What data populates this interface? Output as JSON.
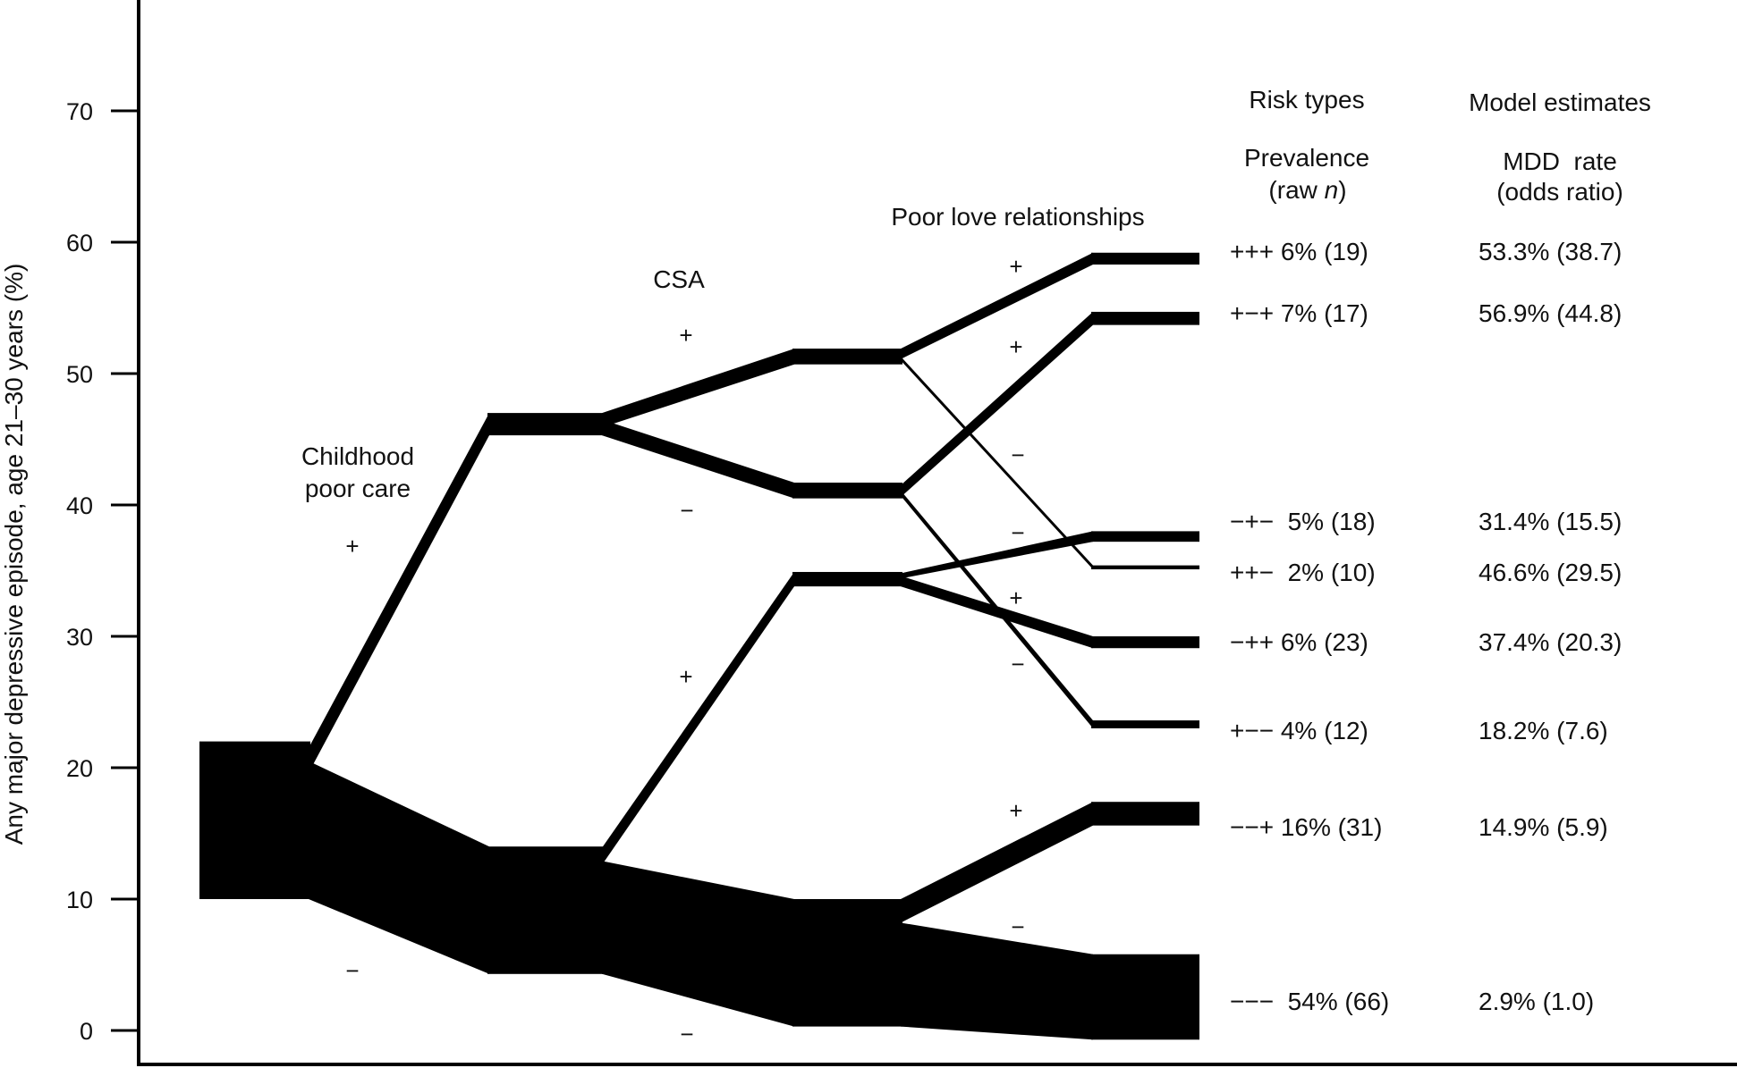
{
  "chart_data": {
    "type": "flow",
    "ylabel": "Any major depressive episode, age 21–30 years (%)",
    "ylim": [
      0,
      70
    ],
    "yticks": [
      "0",
      "10",
      "20",
      "30",
      "40",
      "50",
      "60",
      "70"
    ],
    "stages": {
      "childhood": {
        "label_line1": "Childhood",
        "label_line2": "poor care",
        "plus": "+",
        "minus": "−"
      },
      "csa": {
        "label": "CSA",
        "plus_top": "+",
        "minus_top": "−",
        "plus_bottom": "+",
        "minus_bottom": "−"
      },
      "love": {
        "label": "Poor love relationships",
        "signs": [
          "+",
          "+",
          "−",
          "−",
          "+",
          "−",
          "+",
          "−"
        ]
      }
    },
    "nodes": [
      {
        "id": "all",
        "stage": 0,
        "lo": 10,
        "hi": 22
      },
      {
        "id": "+",
        "stage": 1,
        "lo": 45.3,
        "hi": 47.0
      },
      {
        "id": "-",
        "stage": 1,
        "lo": 4.3,
        "hi": 14.0
      },
      {
        "id": "++",
        "stage": 2,
        "lo": 50.7,
        "hi": 51.9
      },
      {
        "id": "+-",
        "stage": 2,
        "lo": 40.5,
        "hi": 41.7
      },
      {
        "id": "-+",
        "stage": 2,
        "lo": 33.8,
        "hi": 34.9
      },
      {
        "id": "--",
        "stage": 2,
        "lo": 0.3,
        "hi": 10.0
      },
      {
        "id": "+++",
        "stage": 3,
        "lo": 58.3,
        "hi": 59.2
      },
      {
        "id": "+-+",
        "stage": 3,
        "lo": 53.7,
        "hi": 54.7
      },
      {
        "id": "-+-",
        "stage": 3,
        "lo": 37.2,
        "hi": 38.0
      },
      {
        "id": "++-",
        "stage": 3,
        "lo": 35.1,
        "hi": 35.4
      },
      {
        "id": "-++",
        "stage": 3,
        "lo": 29.1,
        "hi": 30.0
      },
      {
        "id": "+--",
        "stage": 3,
        "lo": 23.0,
        "hi": 23.6
      },
      {
        "id": "--+",
        "stage": 3,
        "lo": 15.6,
        "hi": 17.4
      },
      {
        "id": "---",
        "stage": 3,
        "lo": -0.7,
        "hi": 5.8
      }
    ],
    "links": [
      {
        "from_stage": 0,
        "from": [
          19.6,
          21.5
        ],
        "to": [
          45.3,
          47.0
        ]
      },
      {
        "from_stage": 0,
        "from": [
          10.0,
          20.5
        ],
        "to": [
          4.3,
          14.0
        ]
      },
      {
        "from_stage": 1,
        "from": [
          45.9,
          47.0
        ],
        "to": [
          50.7,
          51.9
        ]
      },
      {
        "from_stage": 1,
        "from": [
          45.3,
          46.5
        ],
        "to": [
          40.5,
          41.7
        ]
      },
      {
        "from_stage": 1,
        "from": [
          12.6,
          13.9
        ],
        "to": [
          33.8,
          34.9
        ]
      },
      {
        "from_stage": 1,
        "from": [
          4.3,
          12.9
        ],
        "to": [
          0.3,
          10.0
        ]
      },
      {
        "from_stage": 2,
        "from": [
          51.1,
          51.9
        ],
        "to": [
          58.3,
          59.2
        ]
      },
      {
        "from_stage": 2,
        "from": [
          51.0,
          51.3
        ],
        "to": [
          35.1,
          35.4
        ]
      },
      {
        "from_stage": 2,
        "from": [
          40.6,
          41.5
        ],
        "to": [
          53.7,
          54.7
        ]
      },
      {
        "from_stage": 2,
        "from": [
          40.7,
          41.1
        ],
        "to": [
          23.0,
          23.6
        ]
      },
      {
        "from_stage": 2,
        "from": [
          34.4,
          34.8
        ],
        "to": [
          37.2,
          38.0
        ]
      },
      {
        "from_stage": 2,
        "from": [
          33.8,
          34.6
        ],
        "to": [
          29.1,
          30.0
        ]
      },
      {
        "from_stage": 2,
        "from": [
          8.2,
          10.0
        ],
        "to": [
          15.6,
          17.4
        ]
      },
      {
        "from_stage": 2,
        "from": [
          0.3,
          8.2
        ],
        "to": [
          -0.7,
          5.8
        ]
      }
    ],
    "table": {
      "risk_header": "Risk types",
      "model_header": "Model estimates",
      "prev_header_line1": "Prevalence",
      "prev_header_line2_a": "(raw ",
      "prev_header_line2_n": "n",
      "prev_header_line2_b": ")",
      "rate_header_line1": "MDD  rate",
      "rate_header_line2": "(odds ratio)",
      "rows": [
        {
          "type": "+++ 6% (19)",
          "estimate": "53.3% (38.7)"
        },
        {
          "type": "+−+ 7% (17)",
          "estimate": "56.9% (44.8)"
        },
        {
          "type": "−+−  5% (18)",
          "estimate": "31.4% (15.5)"
        },
        {
          "type": "++−  2% (10)",
          "estimate": "46.6% (29.5)"
        },
        {
          "type": "−++ 6% (23)",
          "estimate": "37.4% (20.3)"
        },
        {
          "type": "+−− 4% (12)",
          "estimate": "18.2% (7.6)"
        },
        {
          "type": "−−+ 16% (31)",
          "estimate": "14.9% (5.9)"
        },
        {
          "type": "−−−  54% (66)",
          "estimate": "2.9% (1.0)"
        }
      ]
    }
  }
}
